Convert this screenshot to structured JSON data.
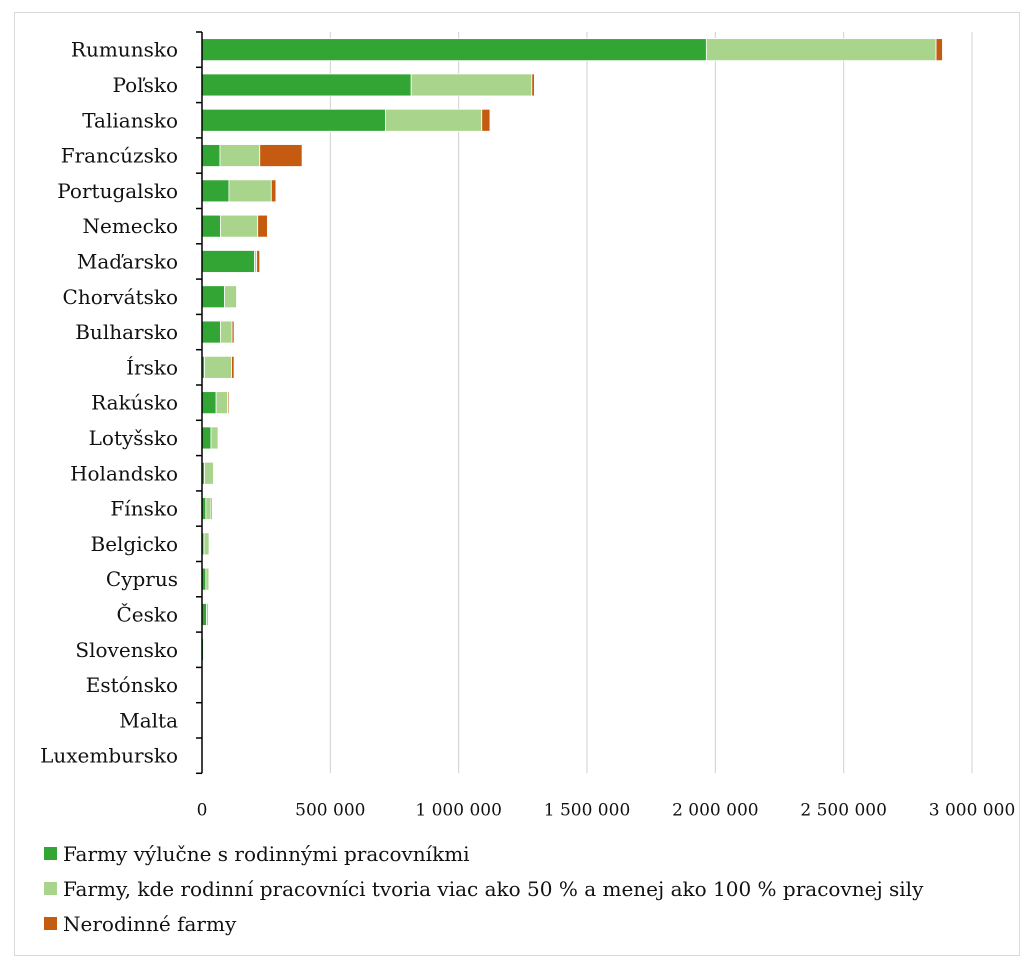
{
  "chart_data": {
    "type": "bar",
    "orientation": "horizontal",
    "stacked": true,
    "categories": [
      "Rumunsko",
      "Poľsko",
      "Taliansko",
      "Francúzsko",
      "Portugalsko",
      "Nemecko",
      "Maďarsko",
      "Chorvátsko",
      "Bulharsko",
      "Írsko",
      "Rakúsko",
      "Lotyšsko",
      "Holandsko",
      "Fínsko",
      "Belgicko",
      "Cyprus",
      "Česko",
      "Slovensko",
      "Estónsko",
      "Malta",
      "Luxembursko"
    ],
    "series": [
      {
        "name": "Farmy výlučne s rodinnými pracovníkmi",
        "color": "#33a534",
        "values": [
          1965000,
          815000,
          715000,
          70000,
          105000,
          72000,
          205000,
          88000,
          72000,
          10000,
          55000,
          35000,
          10000,
          15000,
          8000,
          15000,
          18000,
          6000,
          2000,
          1000,
          500
        ]
      },
      {
        "name": "Farmy, kde rodinní pracovníci tvoria viac ako 50 % a menej ako 100 % pracovnej sily",
        "color": "#a8d48c",
        "values": [
          895000,
          470000,
          375000,
          155000,
          165000,
          145000,
          8000,
          47000,
          45000,
          105000,
          45000,
          28000,
          35000,
          20000,
          20000,
          12000,
          7000,
          4000,
          1000,
          500,
          500
        ]
      },
      {
        "name": "Nerodinné farmy",
        "color": "#c55a11",
        "values": [
          25000,
          10000,
          32000,
          165000,
          18000,
          38000,
          12000,
          3000,
          8000,
          10000,
          5000,
          2000,
          3000,
          5000,
          2000,
          1000,
          2000,
          1000,
          500,
          200,
          200
        ]
      }
    ],
    "x_ticks": [
      "0",
      "500 000",
      "1 000 000",
      "1 500 000",
      "2 000 000",
      "2 500 000",
      "3 000 000"
    ],
    "xlim": [
      0,
      3000000
    ],
    "grid": "vertical",
    "legend_position": "bottom"
  }
}
